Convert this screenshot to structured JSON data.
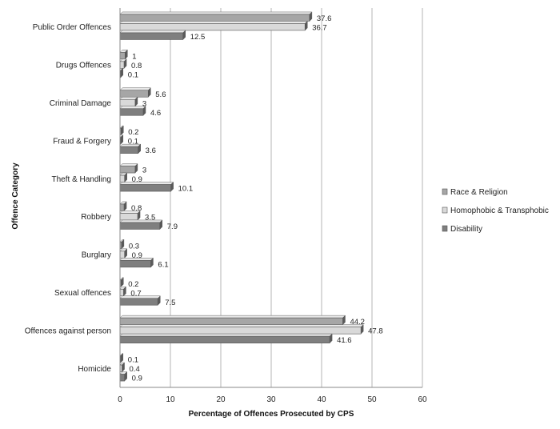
{
  "chart_data": {
    "type": "bar",
    "orientation": "horizontal",
    "title": "",
    "xlabel": "Percentage of Offences Prosecuted by CPS",
    "ylabel": "Offence Category",
    "xlim": [
      0,
      60
    ],
    "xticks": [
      0,
      10,
      20,
      30,
      40,
      50,
      60
    ],
    "grid": true,
    "legend_position": "right",
    "categories": [
      "Public Order Offences",
      "Drugs Offences",
      "Criminal Damage",
      "Fraud & Forgery",
      "Theft & Handling",
      "Robbery",
      "Burglary",
      "Sexual offences",
      "Offences against person",
      "Homicide"
    ],
    "series": [
      {
        "name": "Race & Religion",
        "color": "#a6a6a6",
        "values": [
          37.6,
          1,
          5.6,
          0.2,
          3,
          0.8,
          0.3,
          0.2,
          44.2,
          0.1
        ]
      },
      {
        "name": "Homophobic & Transphobic",
        "color": "#d9d9d9",
        "values": [
          36.7,
          0.8,
          3,
          0.1,
          0.9,
          3.5,
          0.9,
          0.7,
          47.8,
          0.4
        ]
      },
      {
        "name": "Disability",
        "color": "#7f7f7f",
        "values": [
          12.5,
          0.1,
          4.6,
          3.6,
          10.1,
          7.9,
          6.1,
          7.5,
          41.6,
          0.9
        ]
      }
    ],
    "value_labels": [
      [
        "37.6",
        "1",
        "5.6",
        "0.2",
        "3",
        "0.8",
        "0.3",
        "0.2",
        "44.2",
        "0.1"
      ],
      [
        "36.7",
        "0.8",
        "3",
        "0.1",
        "0.9",
        "3.5",
        "0.9",
        "0.7",
        "47.8",
        "0.4"
      ],
      [
        "12.5",
        "0.1",
        "4.6",
        "3.6",
        "10.1",
        "7.9",
        "6.1",
        "7.5",
        "41.6",
        "0.9"
      ]
    ]
  }
}
